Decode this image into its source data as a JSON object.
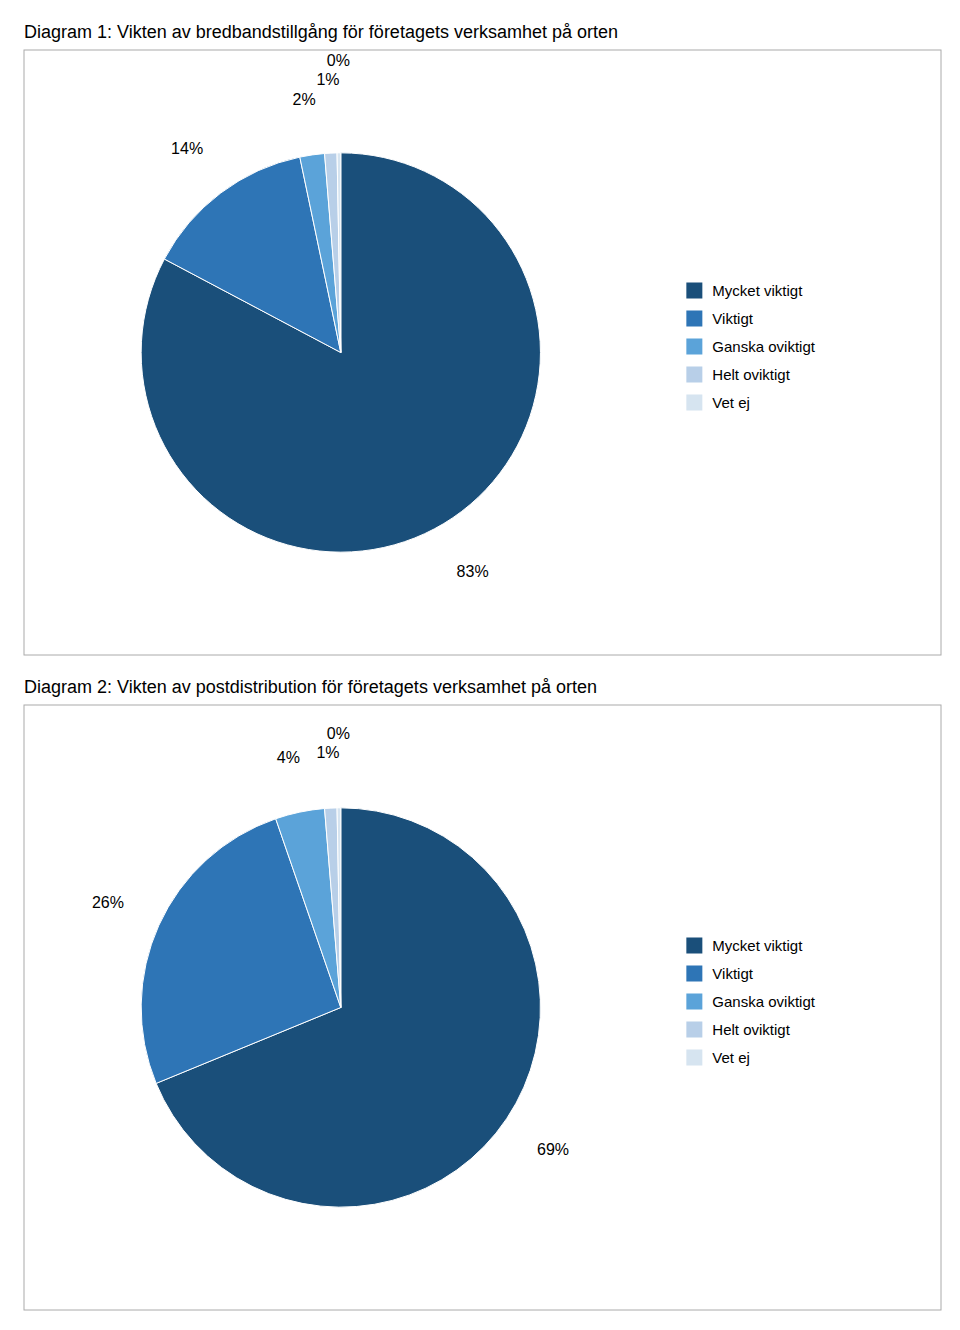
{
  "chart_data": [
    {
      "type": "pie",
      "title": "Diagram 1: Vikten av bredbandstillgång för företagets verksamhet på orten",
      "categories": [
        "Mycket viktigt",
        "Viktigt",
        "Ganska oviktigt",
        "Helt oviktigt",
        "Vet ej"
      ],
      "values": [
        83,
        14,
        2,
        1,
        0.3
      ],
      "value_labels": [
        "83%",
        "14%",
        "2%",
        "1%",
        "0%"
      ],
      "colors": [
        "#1a4f7a",
        "#2e75b6",
        "#5ba3d9",
        "#b8cfe8",
        "#d6e4f0"
      ],
      "data_labels": true,
      "legend": "right"
    },
    {
      "type": "pie",
      "title": "Diagram 2: Vikten av postdistribution för företagets verksamhet på orten",
      "categories": [
        "Mycket viktigt",
        "Viktigt",
        "Ganska oviktigt",
        "Helt oviktigt",
        "Vet ej"
      ],
      "values": [
        69,
        26,
        4,
        1,
        0.3
      ],
      "value_labels": [
        "69%",
        "26%",
        "4%",
        "1%",
        "0%"
      ],
      "colors": [
        "#1a4f7a",
        "#2e75b6",
        "#5ba3d9",
        "#b8cfe8",
        "#d6e4f0"
      ],
      "data_labels": true,
      "legend": "right"
    }
  ]
}
